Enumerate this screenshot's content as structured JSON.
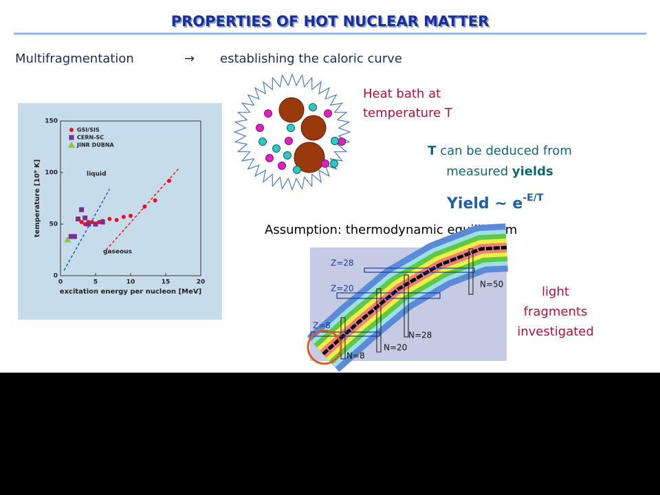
{
  "header": {
    "title": "PROPERTIES OF HOT NUCLEAR MATTER"
  },
  "subtitle": {
    "topic": "Multifragmentation",
    "arrow": "→",
    "text": "establishing the caloric curve"
  },
  "heat_bath": {
    "lines": [
      "Heat bath at",
      "temperature T"
    ]
  },
  "deduction": {
    "line1_bold": "T",
    "line1_rest": "can be deduced from",
    "line2_rest": "measured",
    "line2_bold": "yields"
  },
  "formula": {
    "base": "Yield ~ e",
    "exponent": "-E/T"
  },
  "assumption": "Assumption: thermodynamic equilibrium",
  "caloric_curve": {
    "type": "scatter",
    "xlabel": "excitation energy per nucleon [MeV]",
    "ylabel": "temperature [10⁹ K]",
    "xlim": [
      0,
      20
    ],
    "ylim": [
      0,
      150
    ],
    "xticks": [
      0,
      5,
      10,
      15,
      20
    ],
    "yticks": [
      0,
      50,
      100,
      150
    ],
    "series": [
      {
        "name": "GSI/SIS",
        "color": "#e8121e",
        "marker": "circle",
        "x": [
          2.5,
          3,
          3.5,
          4,
          4.5,
          5,
          5.5,
          6,
          7,
          8,
          9,
          10,
          12,
          13.5,
          15.5
        ],
        "y": [
          55,
          52,
          50,
          52,
          52,
          50,
          52,
          53,
          55,
          54,
          57,
          58,
          67,
          73,
          92
        ]
      },
      {
        "name": "CERN-SC",
        "color": "#7a2e8e",
        "marker": "square",
        "x": [
          1.5,
          2,
          2.5,
          3,
          3.5,
          4,
          5,
          6
        ],
        "y": [
          38,
          38,
          55,
          64,
          56,
          50,
          50,
          52
        ]
      },
      {
        "name": "JINR DUBNA",
        "color": "#8cc63e",
        "marker": "triangle",
        "x": [
          1
        ],
        "y": [
          35
        ]
      }
    ],
    "fits": [
      {
        "label": "liquid",
        "color": "#1f5fb0",
        "x": [
          0.5,
          7
        ],
        "y": [
          5,
          84
        ]
      },
      {
        "label": "gaseous",
        "color": "#e8121e",
        "x": [
          6.5,
          17
        ],
        "y": [
          25,
          105
        ]
      }
    ]
  },
  "nuclide_chart": {
    "z_labels": [
      "Z=28",
      "Z=20",
      "Z=8"
    ],
    "n_labels": [
      "N=50",
      "N=28",
      "N=20",
      "N=8"
    ]
  },
  "note": {
    "lines": [
      "light",
      "fragments",
      "investigated"
    ]
  }
}
